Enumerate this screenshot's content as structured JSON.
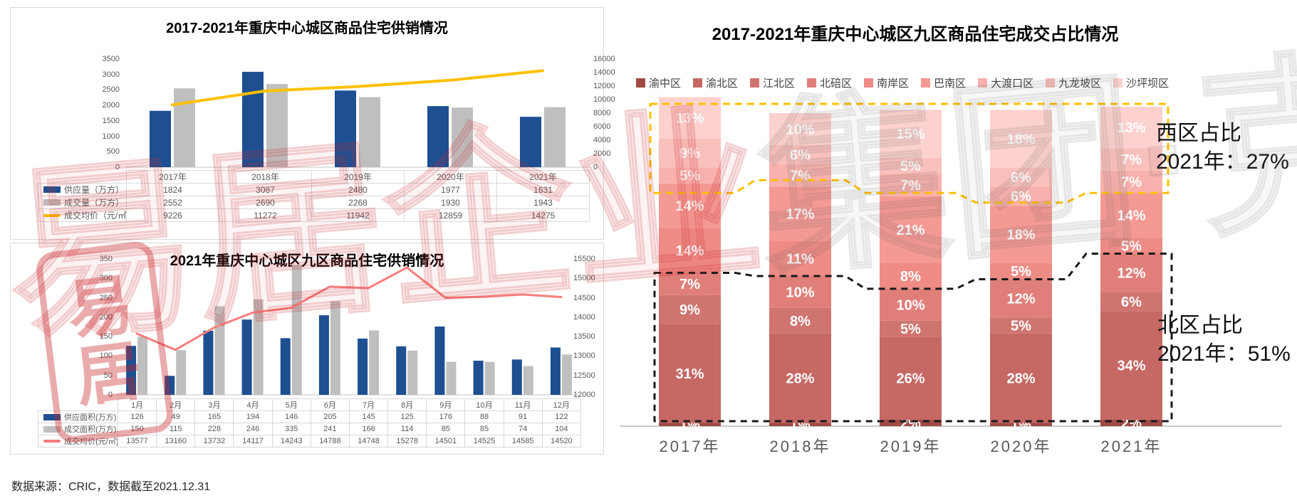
{
  "footer": {
    "source_text": "数据来源：CRIC，数据截至2021.12.31"
  },
  "watermark": {
    "red_text": "易居企业",
    "gray_text": "集团·克而瑞",
    "seal_text": "易\n居"
  },
  "chart_data": [
    {
      "id": "yearly-supply-sales",
      "type": "bar",
      "title": "2017-2021年重庆中心城区商品住宅供销情况",
      "categories": [
        "2017年",
        "2018年",
        "2019年",
        "2020年",
        "2021年"
      ],
      "series": [
        {
          "name": "供应量（万方）",
          "kind": "bar",
          "color": "#1d4f91",
          "values": [
            1824,
            3087,
            2480,
            1977,
            1631
          ]
        },
        {
          "name": "成交量（万方）",
          "kind": "bar",
          "color": "#bfbfbf",
          "values": [
            2552,
            2690,
            2268,
            1930,
            1943
          ]
        },
        {
          "name": "成交均价（元/㎡）",
          "kind": "line",
          "color": "#ffc000",
          "axis": "right",
          "values": [
            9226,
            11272,
            11942,
            12859,
            14275
          ]
        }
      ],
      "left_axis": {
        "min": 0,
        "max": 3500,
        "ticks": [
          "3500",
          "3000",
          "2500",
          "2000",
          "1500",
          "1000",
          "500",
          "0"
        ]
      },
      "right_axis": {
        "min": 0,
        "max": 16000,
        "ticks": [
          "16000",
          "14000",
          "12000",
          "10000",
          "8000",
          "6000",
          "4000",
          "2000",
          "0"
        ]
      },
      "legend_position": "table-left",
      "grid": false
    },
    {
      "id": "monthly-2021-supply-sales",
      "type": "bar",
      "title": "2021年重庆中心城区九区商品住宅供销情况",
      "categories": [
        "1月",
        "2月",
        "3月",
        "4月",
        "5月",
        "6月",
        "7月",
        "8月",
        "9月",
        "10月",
        "11月",
        "12月"
      ],
      "series": [
        {
          "name": "供应面积(万方)",
          "kind": "bar",
          "color": "#1d4f91",
          "values": [
            126,
            49,
            165,
            194,
            146,
            205,
            145,
            125,
            176,
            88,
            91,
            122
          ]
        },
        {
          "name": "成交面积(万方)",
          "kind": "bar",
          "color": "#bfbfbf",
          "values": [
            150,
            115,
            228,
            246,
            335,
            241,
            166,
            114,
            85,
            85,
            74,
            104
          ]
        },
        {
          "name": "成交均价(元/㎡)",
          "kind": "line",
          "color": "#fa7d7d",
          "axis": "right",
          "values": [
            13577,
            13160,
            13732,
            14117,
            14243,
            14788,
            14748,
            15278,
            14501,
            14525,
            14585,
            14520
          ]
        }
      ],
      "left_axis": {
        "min": 0,
        "max": 350,
        "ticks": [
          "350",
          "300",
          "250",
          "200",
          "150",
          "100",
          "50",
          "0"
        ]
      },
      "right_axis": {
        "min": 12000,
        "max": 15500,
        "ticks": [
          "15500",
          "15000",
          "14500",
          "14000",
          "13500",
          "13000",
          "12500",
          "12000"
        ]
      },
      "legend_position": "table-left",
      "grid": false
    },
    {
      "id": "district-share",
      "type": "bar",
      "subtype": "stacked-percent",
      "title": "2017-2021年重庆中心城区九区商品住宅成交占比情况",
      "categories": [
        "2017年",
        "2018年",
        "2019年",
        "2020年",
        "2021年"
      ],
      "unit": "%",
      "series": [
        {
          "name": "渝中区",
          "color": "#a04a45",
          "values": [
            1,
            1,
            2,
            1,
            2
          ]
        },
        {
          "name": "渝北区",
          "color": "#c66864",
          "values": [
            31,
            28,
            26,
            28,
            34
          ]
        },
        {
          "name": "江北区",
          "color": "#d07470",
          "values": [
            9,
            8,
            5,
            5,
            6
          ]
        },
        {
          "name": "北碚区",
          "color": "#e07f7a",
          "values": [
            7,
            10,
            10,
            12,
            12
          ]
        },
        {
          "name": "南岸区",
          "color": "#ee8b85",
          "values": [
            14,
            11,
            8,
            5,
            5
          ]
        },
        {
          "name": "巴南区",
          "color": "#f59994",
          "values": [
            14,
            17,
            21,
            18,
            14
          ]
        },
        {
          "name": "大渡口区",
          "color": "#f8b1ac",
          "values": [
            5,
            7,
            7,
            6,
            7
          ]
        },
        {
          "name": "九龙坡区",
          "color": "#fac0bc",
          "values": [
            9,
            6,
            5,
            6,
            7
          ]
        },
        {
          "name": "沙坪坝区",
          "color": "#fcd1ce",
          "values": [
            13,
            10,
            15,
            18,
            13
          ]
        }
      ],
      "stack_order": "bottom-to-top equals series order",
      "legend_position": "top",
      "annotations": [
        {
          "id": "west-share",
          "line1": "西区占比",
          "line2": "2021年：27%",
          "box_color": "#ffc000",
          "box_covers": "top 3 segments"
        },
        {
          "id": "north-share",
          "line1": "北区占比",
          "line2": "2021年：51%",
          "box_color": "#1a1a1a",
          "box_covers": "bottom 4 segments"
        }
      ]
    }
  ]
}
